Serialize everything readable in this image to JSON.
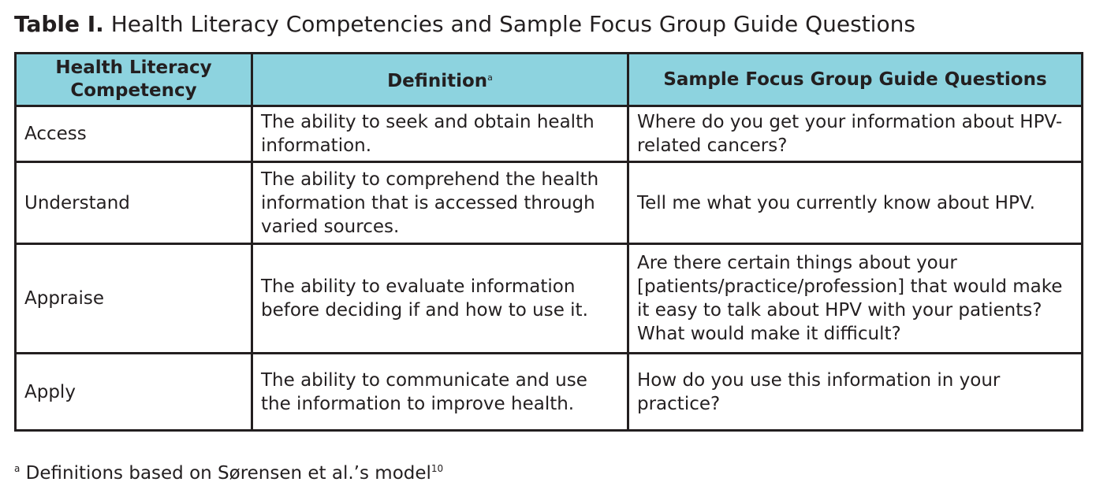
{
  "title": {
    "label": "Table I.",
    "text": "Health Literacy Competencies and Sample Focus Group Guide Questions"
  },
  "colors": {
    "header_bg": "#8dd3df",
    "border": "#231f20"
  },
  "table": {
    "headers": [
      "Health Literacy Competency",
      "Definition",
      "Sample Focus Group Guide Questions"
    ],
    "definition_footnote_marker": "a",
    "rows": [
      {
        "competency": "Access",
        "definition": "The ability to seek and obtain health information.",
        "question": "Where do you get your information about HPV-related cancers?"
      },
      {
        "competency": "Understand",
        "definition": "The ability to comprehend the health information that is accessed through varied sources.",
        "question": "Tell me what you currently know about HPV."
      },
      {
        "competency": "Appraise",
        "definition": "The ability to evaluate information before deciding if and how to use it.",
        "question": "Are there certain things about your [patients/practice/profession] that would make it easy to talk about HPV with your patients? What would make it difficult?"
      },
      {
        "competency": "Apply",
        "definition": "The ability to communicate and use the information to improve health.",
        "question": "How do you use this information in your practice?"
      }
    ]
  },
  "footnote": {
    "marker": "a",
    "text": "Definitions based on Sørensen et al.’s model",
    "ref": "10"
  }
}
